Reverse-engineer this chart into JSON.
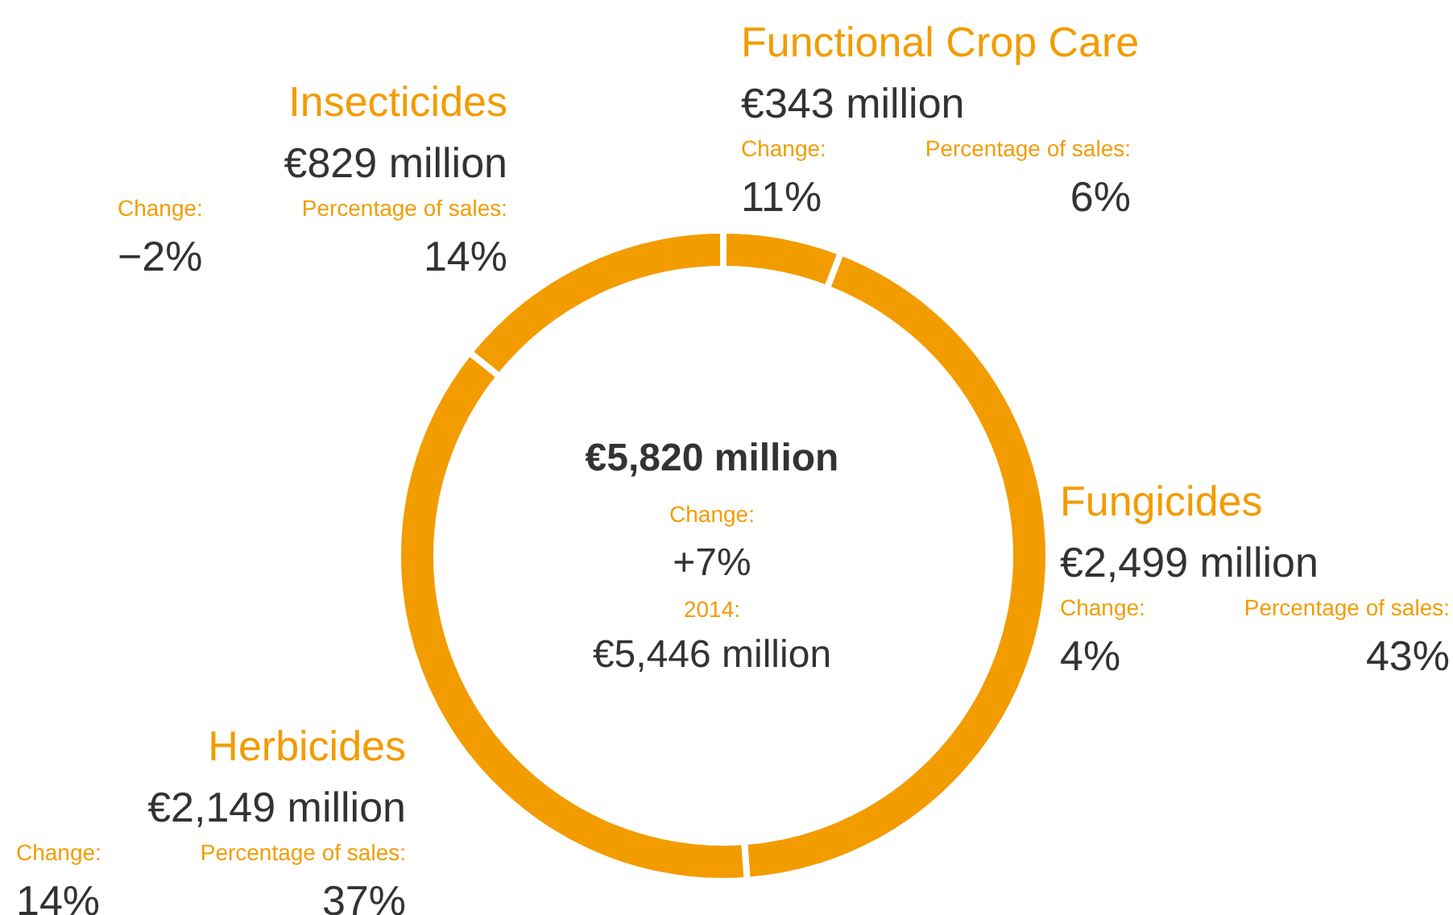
{
  "chart_data": {
    "type": "donut",
    "categories": [
      "Functional Crop Care",
      "Fungicides",
      "Herbicides",
      "Insecticides"
    ],
    "values": [
      343,
      2499,
      2149,
      829
    ],
    "value_labels": [
      "€343 million",
      "€2,499 million",
      "€2,149 million",
      "€829 million"
    ],
    "colors": [
      "#f39c00",
      "#f39c00",
      "#f39c00",
      "#f39c00"
    ],
    "annotations": [
      "Change:",
      "11%",
      "Percentage of sales:",
      "6%",
      "Change:",
      "4%",
      "Percentage of sales:",
      "43%",
      "Change:",
      "14%",
      "Percentage of sales:",
      "37%",
      "Change:",
      "−2%",
      "Percentage of sales:",
      "14%",
      "€5,820 million",
      "Change:",
      "+7%",
      "2014:",
      "€5,446 million"
    ]
  }
}
